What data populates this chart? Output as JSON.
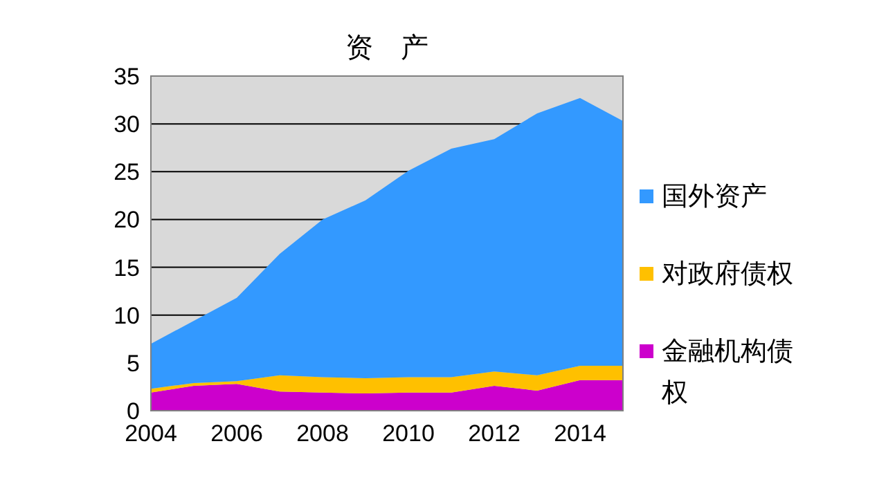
{
  "chart_data": {
    "type": "area",
    "title": "资　产",
    "stacked": true,
    "grid": "y",
    "legend": "right",
    "x": [
      2004,
      2005,
      2006,
      2007,
      2008,
      2009,
      2010,
      2011,
      2012,
      2013,
      2014,
      2015
    ],
    "xlim": [
      2004,
      2015
    ],
    "xticks": [
      2004,
      2006,
      2008,
      2010,
      2012,
      2014
    ],
    "ylim": [
      0,
      35
    ],
    "yticks": [
      0,
      5,
      10,
      15,
      20,
      25,
      30,
      35
    ],
    "series": [
      {
        "name": "金融机构债权",
        "color": "#cc00cc",
        "values": [
          1.9,
          2.6,
          2.8,
          2.0,
          1.9,
          1.8,
          1.9,
          1.9,
          2.6,
          2.1,
          3.2,
          3.2
        ]
      },
      {
        "name": "对政府债权",
        "color": "#ffc000",
        "values": [
          0.4,
          0.3,
          0.3,
          1.7,
          1.6,
          1.6,
          1.6,
          1.6,
          1.5,
          1.6,
          1.5,
          1.5
        ]
      },
      {
        "name": "国外资产",
        "color": "#3399ff",
        "values": [
          4.7,
          6.5,
          8.7,
          12.7,
          16.5,
          18.6,
          21.6,
          23.9,
          24.3,
          27.4,
          28.0,
          25.6
        ]
      }
    ]
  }
}
